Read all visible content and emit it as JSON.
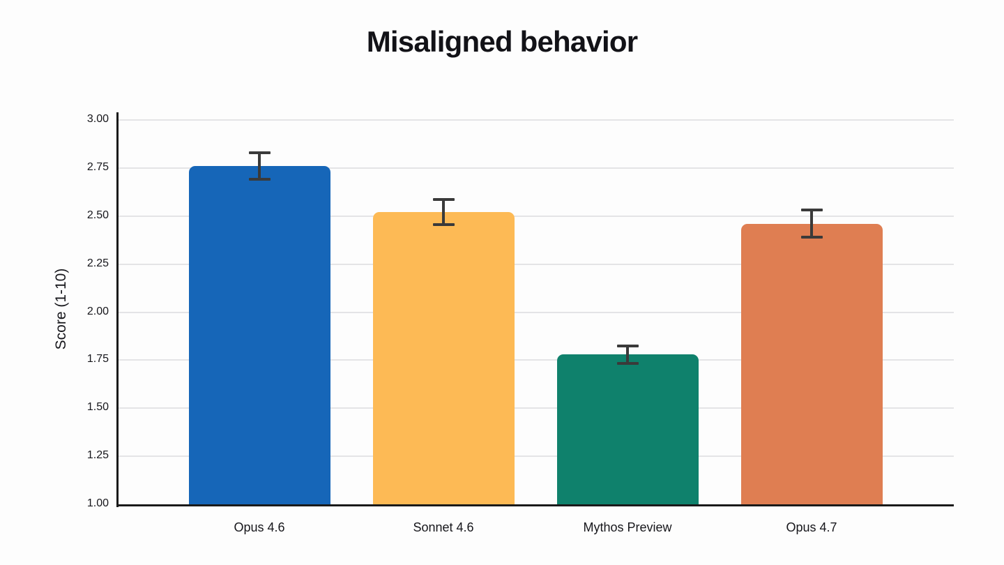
{
  "chart_data": {
    "type": "bar",
    "title": "Misaligned behavior",
    "xlabel": "",
    "ylabel": "Score (1-10)",
    "categories": [
      "Opus 4.6",
      "Sonnet 4.6",
      "Mythos Preview",
      "Opus 4.7"
    ],
    "values": [
      2.76,
      2.52,
      1.78,
      2.46
    ],
    "error_bars": [
      0.07,
      0.065,
      0.045,
      0.07
    ],
    "bar_colors": [
      "#1666B8",
      "#FDBA55",
      "#0F816C",
      "#DF7E52"
    ],
    "ylim": [
      1.0,
      3.0
    ],
    "yticks": [
      "3.00",
      "2.75",
      "2.50",
      "2.25",
      "2.00",
      "1.75",
      "1.50",
      "1.25",
      "1.00"
    ],
    "grid": "horizontal-only",
    "legend": "none",
    "error_bar_color": "#3A3A3A",
    "grid_color": "#E4E4E6",
    "axis_color": "#1A1A1A",
    "text_color": "#16161B",
    "background_color": "#FDFDFD"
  }
}
